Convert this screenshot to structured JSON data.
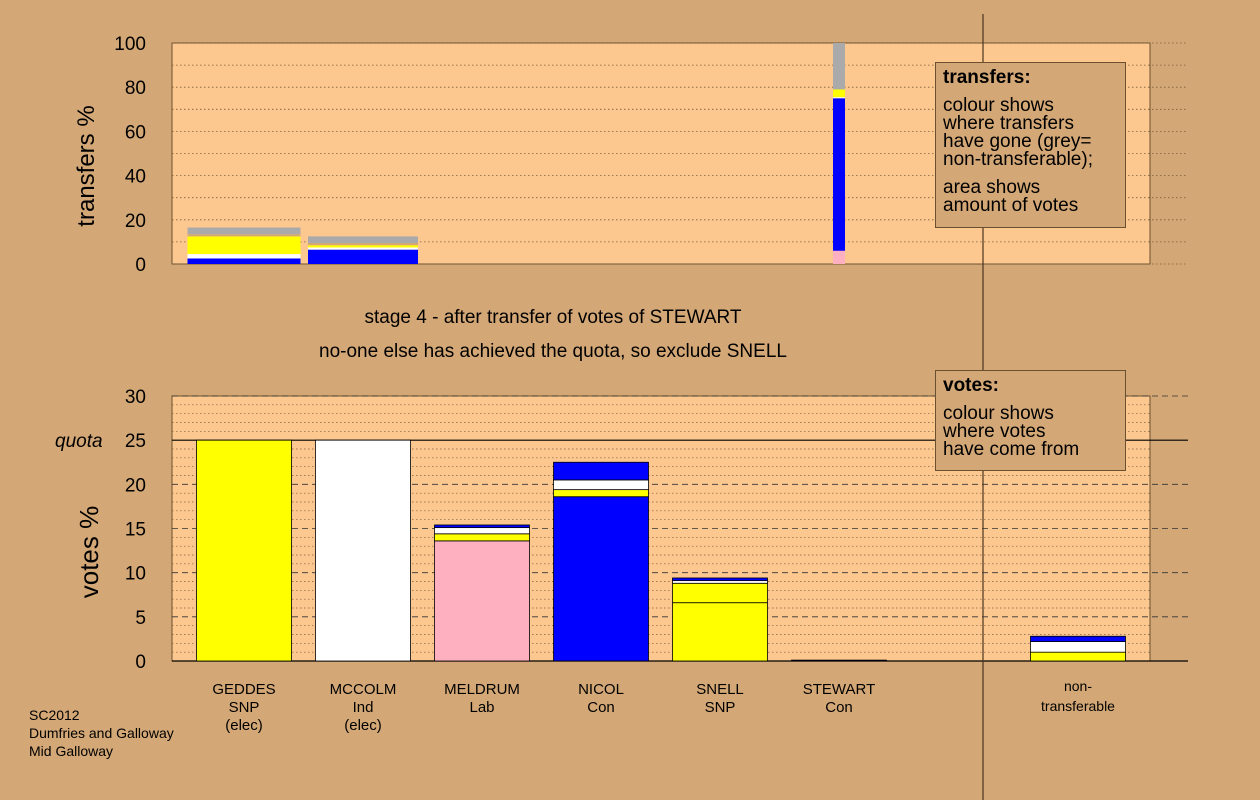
{
  "chart_data": [
    {
      "type": "bar",
      "stacked": true,
      "ylabel": "transfers %",
      "ylim": [
        0,
        100
      ],
      "yticks": [
        0,
        20,
        40,
        60,
        80,
        100
      ],
      "grid": "dotted",
      "categories": [
        "GEDDES",
        "MCCOLM",
        "MELDRUM",
        "NICOL",
        "SNELL",
        "STEWART",
        "non-transferable"
      ],
      "bars": [
        {
          "category": "GEDDES",
          "segments": [
            {
              "color": "#0000ff",
              "value": 2.5
            },
            {
              "color": "#ffffff",
              "value": 2
            },
            {
              "color": "#ffff00",
              "value": 8
            },
            {
              "color": "#d4a876",
              "value": 1
            },
            {
              "color": "#aaaaaa",
              "value": 3
            }
          ]
        },
        {
          "category": "MCCOLM",
          "segments": [
            {
              "color": "#0000ff",
              "value": 6.5
            },
            {
              "color": "#ffffff",
              "value": 1
            },
            {
              "color": "#ffff00",
              "value": 1
            },
            {
              "color": "#d4a876",
              "value": 1
            },
            {
              "color": "#aaaaaa",
              "value": 3
            }
          ]
        },
        {
          "category": "STEWART",
          "segments": [
            {
              "color": "#ffb0c0",
              "value": 6
            },
            {
              "color": "#0000ff",
              "value": 69
            },
            {
              "color": "#ffffff",
              "value": 0.5
            },
            {
              "color": "#ffff00",
              "value": 3.5
            },
            {
              "color": "#aaaaaa",
              "value": 21
            }
          ]
        }
      ]
    },
    {
      "type": "bar",
      "stacked": true,
      "ylabel": "votes %",
      "ylim": [
        0,
        30
      ],
      "yticks": [
        0,
        5,
        10,
        15,
        20,
        25,
        30
      ],
      "quota": 25,
      "quota_label": "quota",
      "grid": "dashed",
      "categories": [
        "GEDDES",
        "MCCOLM",
        "MELDRUM",
        "NICOL",
        "SNELL",
        "STEWART",
        "non-transferable"
      ],
      "bars": [
        {
          "category": "GEDDES",
          "segments": [
            {
              "color": "#ffff00",
              "value": 25
            }
          ]
        },
        {
          "category": "MCCOLM",
          "segments": [
            {
              "color": "#ffffff",
              "value": 25
            }
          ]
        },
        {
          "category": "MELDRUM",
          "segments": [
            {
              "color": "#ffb0c0",
              "value": 13.6
            },
            {
              "color": "#ffff00",
              "value": 0.8
            },
            {
              "color": "#ffffff",
              "value": 0.7
            },
            {
              "color": "#0000ff",
              "value": 0.3
            }
          ]
        },
        {
          "category": "NICOL",
          "segments": [
            {
              "color": "#0000ff",
              "value": 18.6
            },
            {
              "color": "#ffff00",
              "value": 0.8
            },
            {
              "color": "#ffffff",
              "value": 1.1
            },
            {
              "color": "#0000ff",
              "value": 2
            }
          ]
        },
        {
          "category": "SNELL",
          "segments": [
            {
              "color": "#ffff00",
              "value": 6.6
            },
            {
              "color": "#ffff00",
              "value": 2.2
            },
            {
              "color": "#ffffff",
              "value": 0.3
            },
            {
              "color": "#0000ff",
              "value": 0.3
            }
          ]
        },
        {
          "category": "STEWART",
          "segments": [
            {
              "color": "#0000ff",
              "value": 0.1
            }
          ]
        },
        {
          "category": "non-transferable",
          "segments": [
            {
              "color": "#ffff00",
              "value": 1
            },
            {
              "color": "#ffffff",
              "value": 1.2
            },
            {
              "color": "#0000ff",
              "value": 0.6
            }
          ]
        }
      ]
    }
  ],
  "candidates": [
    {
      "name": "GEDDES",
      "party": "SNP",
      "status": "(elec)"
    },
    {
      "name": "MCCOLM",
      "party": "Ind",
      "status": "(elec)"
    },
    {
      "name": "MELDRUM",
      "party": "Lab",
      "status": ""
    },
    {
      "name": "NICOL",
      "party": "Con",
      "status": ""
    },
    {
      "name": "SNELL",
      "party": "SNP",
      "status": ""
    },
    {
      "name": "STEWART",
      "party": "Con",
      "status": ""
    }
  ],
  "nontransferable_label": [
    "non-",
    "transferable"
  ],
  "stage_text": "stage 4 - after transfer of votes of STEWART",
  "status_text": "no-one else has achieved the quota, so exclude SNELL",
  "legend_transfers": {
    "title": "transfers:",
    "para1": [
      "colour shows",
      "where transfers",
      "have gone (grey=",
      "non-transferable);"
    ],
    "para2": [
      "area shows",
      "amount of votes"
    ]
  },
  "legend_votes": {
    "title": "votes:",
    "para1": [
      "colour shows",
      "where votes",
      "have come from"
    ]
  },
  "info": {
    "line1": "SC2012",
    "line2": "Dumfries and Galloway",
    "line3": "Mid Galloway"
  },
  "colors": {
    "background": "#d4a876",
    "plot_area": "#fdc890",
    "yellow": "#ffff00",
    "blue": "#0000ff",
    "pink": "#ffb0c0",
    "grey": "#aaaaaa",
    "white": "#ffffff"
  }
}
